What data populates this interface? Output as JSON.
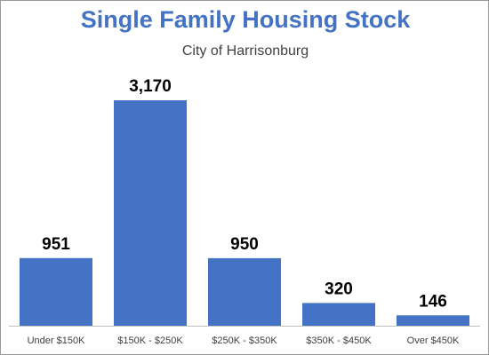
{
  "chart_data": {
    "type": "bar",
    "title": "Single Family Housing Stock",
    "subtitle": "City of Harrisonburg",
    "categories": [
      "Under $150K",
      "$150K - $250K",
      "$250K - $350K",
      "$350K - $450K",
      "Over $450K"
    ],
    "value_labels": [
      "951",
      "3,170",
      "950",
      "320",
      "146"
    ],
    "values": [
      951,
      3170,
      950,
      320,
      146
    ],
    "xlabel": "",
    "ylabel": "",
    "ylim": [
      0,
      3500
    ],
    "grid": false,
    "legend": "none",
    "colors": {
      "bar": "#4472c4",
      "title": "#4472c4",
      "axis": "#bfbfbf",
      "label": "#000000",
      "tick": "#404040"
    }
  }
}
